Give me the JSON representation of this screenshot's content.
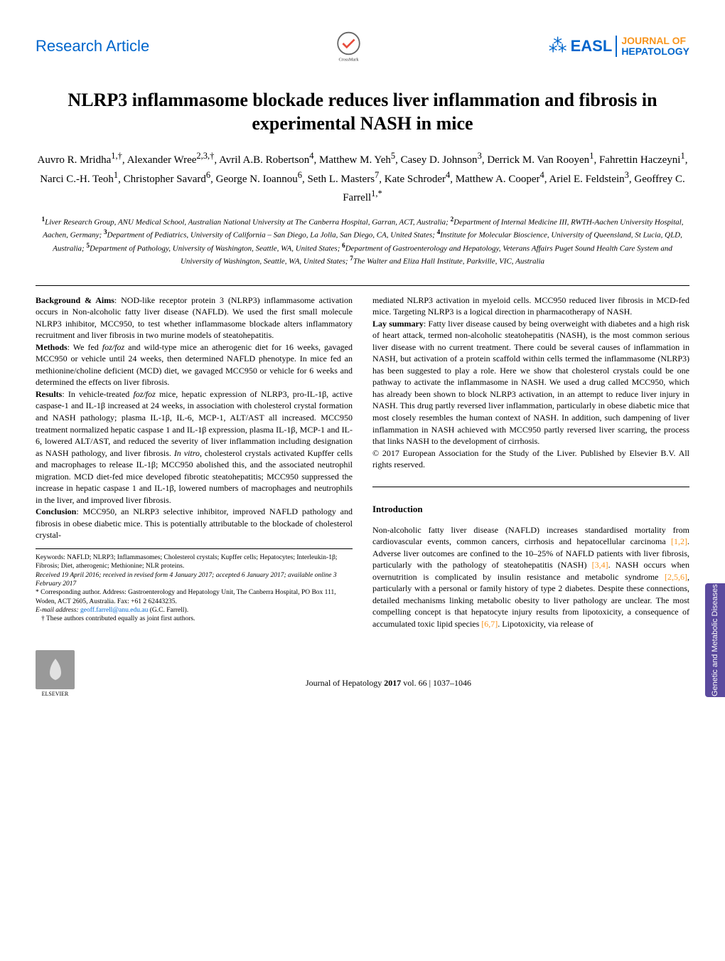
{
  "header": {
    "section_label": "Research Article",
    "crossmark_label": "CrossMark",
    "journal": {
      "easl_text": "EASL",
      "line1": "JOURNAL OF",
      "line2": "HEPATOLOGY"
    }
  },
  "title": "NLRP3 inflammasome blockade reduces liver inflammation and fibrosis in experimental NASH in mice",
  "authors_html": "Auvro R. Mridha<sup>1,†</sup>, Alexander Wree<sup>2,3,†</sup>, Avril A.B. Robertson<sup>4</sup>, Matthew M. Yeh<sup>5</sup>, Casey D. Johnson<sup>3</sup>, Derrick M. Van Rooyen<sup>1</sup>, Fahrettin Haczeyni<sup>1</sup>, Narci C.-H. Teoh<sup>1</sup>, Christopher Savard<sup>6</sup>, George N. Ioannou<sup>6</sup>, Seth L. Masters<sup>7</sup>, Kate Schroder<sup>4</sup>, Matthew A. Cooper<sup>4</sup>, Ariel E. Feldstein<sup>3</sup>, Geoffrey C. Farrell<sup>1,*</sup>",
  "affiliations_html": "<sup>1</sup>Liver Research Group, ANU Medical School, Australian National University at The Canberra Hospital, Garran, ACT, Australia; <sup>2</sup>Department of Internal Medicine III, RWTH-Aachen University Hospital, Aachen, Germany; <sup>3</sup>Department of Pediatrics, University of California – San Diego, La Jolla, San Diego, CA, United States; <sup>4</sup>Institute for Molecular Bioscience, University of Queensland, St Lucia, QLD, Australia; <sup>5</sup>Department of Pathology, University of Washington, Seattle, WA, United States; <sup>6</sup>Department of Gastroenterology and Hepatology, Veterans Affairs Puget Sound Health Care System and University of Washington, Seattle, WA, United States; <sup>7</sup>The Walter and Eliza Hall Institute, Parkville, VIC, Australia",
  "abstract": {
    "background_label": "Background & Aims",
    "background_text": ": NOD-like receptor protein 3 (NLRP3) inflammasome activation occurs in Non-alcoholic fatty liver disease (NAFLD). We used the first small molecule NLRP3 inhibitor, MCC950, to test whether inflammasome blockade alters inflammatory recruitment and liver fibrosis in two murine models of steatohepatitis.",
    "methods_label": "Methods",
    "methods_text": ": We fed <i>foz/foz</i> and wild-type mice an atherogenic diet for 16 weeks, gavaged MCC950 or vehicle until 24 weeks, then determined NAFLD phenotype. In mice fed an methionine/choline deficient (MCD) diet, we gavaged MCC950 or vehicle for 6 weeks and determined the effects on liver fibrosis.",
    "results_label": "Results",
    "results_text": ": In vehicle-treated <i>foz/foz</i> mice, hepatic expression of NLRP3, pro-IL-1β, active caspase-1 and IL-1β increased at 24 weeks, in association with cholesterol crystal formation and NASH pathology; plasma IL-1β, IL-6, MCP-1, ALT/AST all increased. MCC950 treatment normalized hepatic caspase 1 and IL-1β expression, plasma IL-1β, MCP-1 and IL-6, lowered ALT/AST, and reduced the severity of liver inflammation including designation as NASH pathology, and liver fibrosis. <i>In vitro</i>, cholesterol crystals activated Kupffer cells and macrophages to release IL-1β; MCC950 abolished this, and the associated neutrophil migration. MCD diet-fed mice developed fibrotic steatohepatitis; MCC950 suppressed the increase in hepatic caspase 1 and IL-1β, lowered numbers of macrophages and neutrophils in the liver, and improved liver fibrosis.",
    "conclusion_label": "Conclusion",
    "conclusion_text": ": MCC950, an NLRP3 selective inhibitor, improved NAFLD pathology and fibrosis in obese diabetic mice. This is potentially attributable to the blockade of cholesterol crystal-",
    "col2_continuation": "mediated NLRP3 activation in myeloid cells. MCC950 reduced liver fibrosis in MCD-fed mice. Targeting NLRP3 is a logical direction in pharmacotherapy of NASH.",
    "lay_label": "Lay summary",
    "lay_text": ": Fatty liver disease caused by being overweight with diabetes and a high risk of heart attack, termed non-alcoholic steatohepatitis (NASH), is the most common serious liver disease with no current treatment. There could be several causes of inflammation in NASH, but activation of a protein scaffold within cells termed the inflammasome (NLRP3) has been suggested to play a role. Here we show that cholesterol crystals could be one pathway to activate the inflammasome in NASH. We used a drug called MCC950, which has already been shown to block NLRP3 activation, in an attempt to reduce liver injury in NASH. This drug partly reversed liver inflammation, particularly in obese diabetic mice that most closely resembles the human context of NASH. In addition, such dampening of liver inflammation in NASH achieved with MCC950 partly reversed liver scarring, the process that links NASH to the development of cirrhosis.",
    "copyright": "© 2017 European Association for the Study of the Liver. Published by Elsevier B.V. All rights reserved."
  },
  "introduction": {
    "heading": "Introduction",
    "text_html": "Non-alcoholic fatty liver disease (NAFLD) increases standardised mortality from cardiovascular events, common cancers, cirrhosis and hepatocellular carcinoma <span class=\"ref-link\">[1,2]</span>. Adverse liver outcomes are confined to the 10–25% of NAFLD patients with liver fibrosis, particularly with the pathology of steatohepatitis (NASH) <span class=\"ref-link\">[3,4]</span>. NASH occurs when overnutrition is complicated by insulin resistance and metabolic syndrome <span class=\"ref-link\">[2,5,6]</span>, particularly with a personal or family history of type 2 diabetes. Despite these connections, detailed mechanisms linking metabolic obesity to liver pathology are unclear. The most compelling concept is that hepatocyte injury results from lipotoxicity, a consequence of accumulated toxic lipid species <span class=\"ref-link\">[6,7]</span>. Lipotoxicity, via release of"
  },
  "footnotes": {
    "keywords": "Keywords: NAFLD; NLRP3; Inflammasomes; Cholesterol crystals; Kupffer cells; Hepatocytes; Interleukin-1β; Fibrosis; Diet, atherogenic; Methionine; NLR proteins.",
    "received": "Received 19 April 2016; received in revised form 4 January 2017; accepted 6 January 2017; available online 3 February 2017",
    "corresponding_html": "* Corresponding author. Address: Gastroenterology and Hepatology Unit, The Canberra Hospital, PO Box 111, Woden, ACT 2605, Australia. Fax: +61 2 62443235.",
    "email_label": "E-mail address:",
    "email": "geoff.farrell@anu.edu.au",
    "email_suffix": " (G.C. Farrell).",
    "equal": "† These authors contributed equally as joint first authors."
  },
  "footer": {
    "elsevier": "ELSEVIER",
    "citation_html": "Journal of Hepatology <b>2017</b> vol. 66 | 1037–1046"
  },
  "side_tab": "Genetic and Metabolic Diseases",
  "colors": {
    "section_blue": "#0066cc",
    "orange": "#f7941d",
    "side_purple": "#5b4a9e"
  }
}
